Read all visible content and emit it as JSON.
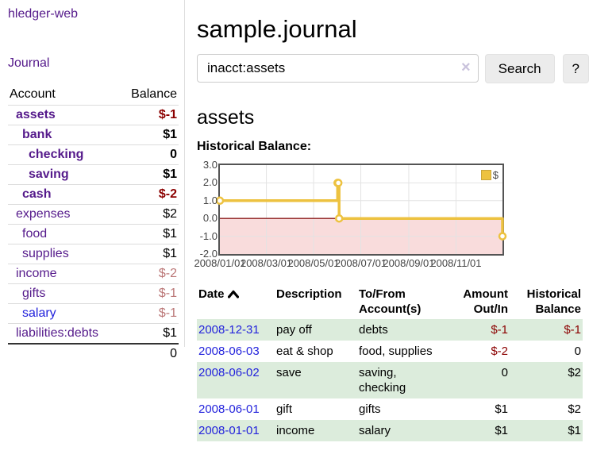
{
  "app": {
    "title": "hledger-web",
    "nav_journal": "Journal"
  },
  "colors": {
    "visited_link_purple": "#551a8b",
    "link_blue": "#2323dc",
    "negative_strong": "#8b0000",
    "negative_soft": "#bb7777",
    "row_stripe_green": "#dcecdc",
    "series_yellow": "#edc240"
  },
  "sidebar": {
    "header": {
      "account": "Account",
      "balance": "Balance"
    },
    "accounts": [
      {
        "name": "assets",
        "balance": "$-1",
        "indent": 1,
        "bold": true,
        "balance_tone": "strong",
        "link": "purple"
      },
      {
        "name": "bank",
        "balance": "$1",
        "indent": 2,
        "bold": true,
        "balance_tone": "none",
        "link": "purple"
      },
      {
        "name": "checking",
        "balance": "0",
        "indent": 3,
        "bold": true,
        "balance_tone": "none",
        "link": "purple"
      },
      {
        "name": "saving",
        "balance": "$1",
        "indent": 3,
        "bold": true,
        "balance_tone": "none",
        "link": "purple"
      },
      {
        "name": "cash",
        "balance": "$-2",
        "indent": 2,
        "bold": true,
        "balance_tone": "strong",
        "link": "purple"
      },
      {
        "name": "expenses",
        "balance": "$2",
        "indent": 1,
        "bold": false,
        "balance_tone": "none",
        "link": "purple"
      },
      {
        "name": "food",
        "balance": "$1",
        "indent": 2,
        "bold": false,
        "balance_tone": "none",
        "link": "purple"
      },
      {
        "name": "supplies",
        "balance": "$1",
        "indent": 2,
        "bold": false,
        "balance_tone": "none",
        "link": "purple"
      },
      {
        "name": "income",
        "balance": "$-2",
        "indent": 1,
        "bold": false,
        "balance_tone": "soft",
        "link": "purple"
      },
      {
        "name": "gifts",
        "balance": "$-1",
        "indent": 2,
        "bold": false,
        "balance_tone": "soft",
        "link": "purple"
      },
      {
        "name": "salary",
        "balance": "$-1",
        "indent": 2,
        "bold": false,
        "balance_tone": "soft",
        "link": "blue"
      },
      {
        "name": "liabilities:debts",
        "balance": "$1",
        "indent": 1,
        "bold": false,
        "balance_tone": "none",
        "link": "purple"
      }
    ],
    "total": "0"
  },
  "header": {
    "title": "sample.journal"
  },
  "search": {
    "value": "inacct:assets",
    "clear_icon": "×",
    "search_button": "Search",
    "help_button": "?"
  },
  "account_page": {
    "title": "assets",
    "chart_heading": "Historical Balance:"
  },
  "chart_data": {
    "type": "line",
    "step": true,
    "title": "Historical Balance:",
    "legend": "$",
    "xlim": [
      "2008-01-01",
      "2008-12-31"
    ],
    "ylim": [
      -2,
      3
    ],
    "x_ticks": [
      "2008/01/01",
      "2008/03/01",
      "2008/05/01",
      "2008/07/01",
      "2008/09/01",
      "2008/11/01"
    ],
    "y_ticks": [
      3.0,
      2.0,
      1.0,
      0.0,
      -1.0,
      -2.0
    ],
    "series": [
      {
        "name": "$",
        "color": "#edc240",
        "points": [
          {
            "date": "2008-01-01",
            "value": 1
          },
          {
            "date": "2008-06-01",
            "value": 2
          },
          {
            "date": "2008-06-02",
            "value": 2
          },
          {
            "date": "2008-06-03",
            "value": 0
          },
          {
            "date": "2008-12-31",
            "value": -1
          }
        ]
      }
    ],
    "grid": true,
    "grid_color": "#e3e3e3",
    "border_color": "#545454",
    "zero_line_color": "#8b1a1a",
    "negative_region_color": "#f9dcdc",
    "legend_position": "top-right"
  },
  "register": {
    "columns": [
      {
        "label": "Date",
        "sorted": "ascending"
      },
      {
        "label": "Description"
      },
      {
        "label": "To/From Account(s)"
      },
      {
        "label": "Amount Out/In"
      },
      {
        "label": "Historical Balance"
      }
    ],
    "rows": [
      {
        "date": "2008-12-31",
        "description": "pay off",
        "accounts": "debts",
        "amount": "$-1",
        "balance": "$-1"
      },
      {
        "date": "2008-06-03",
        "description": "eat & shop",
        "accounts": "food, supplies",
        "amount": "$-2",
        "balance": "0"
      },
      {
        "date": "2008-06-02",
        "description": "save",
        "accounts": "saving, checking",
        "amount": "0",
        "balance": "$2"
      },
      {
        "date": "2008-06-01",
        "description": "gift",
        "accounts": "gifts",
        "amount": "$1",
        "balance": "$2"
      },
      {
        "date": "2008-01-01",
        "description": "income",
        "accounts": "salary",
        "amount": "$1",
        "balance": "$1"
      }
    ]
  }
}
